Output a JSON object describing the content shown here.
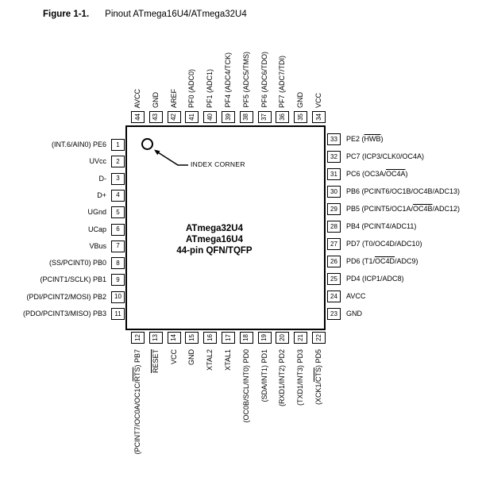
{
  "figure_caption": {
    "label": "Figure 1-1.",
    "title": "Pinout ATmega16U4/ATmega32U4"
  },
  "chip": {
    "title_lines": [
      "ATmega32U4",
      "ATmega16U4",
      "44-pin QFN/TQFP"
    ],
    "index_corner_label": "INDEX CORNER"
  },
  "colors": {
    "ink": "#000000",
    "paper": "#ffffff"
  },
  "pins": {
    "top": [
      {
        "num": 44,
        "label": "AVCC"
      },
      {
        "num": 43,
        "label": "GND"
      },
      {
        "num": 42,
        "label": "AREF"
      },
      {
        "num": 41,
        "label": "PF0 (ADC0)"
      },
      {
        "num": 40,
        "label": "PF1 (ADC1)"
      },
      {
        "num": 39,
        "label": "PF4 (ADC4/TCK)"
      },
      {
        "num": 38,
        "label": "PF5 (ADC5/TMS)"
      },
      {
        "num": 37,
        "label": "PF6 (ADC6/TDO)"
      },
      {
        "num": 36,
        "label": "PF7 (ADC7/TDI)"
      },
      {
        "num": 35,
        "label": "GND"
      },
      {
        "num": 34,
        "label": "VCC"
      }
    ],
    "left": [
      {
        "num": 1,
        "label": "(INT.6/AIN0) PE6"
      },
      {
        "num": 2,
        "label": "UVcc"
      },
      {
        "num": 3,
        "label": "D-"
      },
      {
        "num": 4,
        "label": "D+"
      },
      {
        "num": 5,
        "label": "UGnd"
      },
      {
        "num": 6,
        "label": "UCap"
      },
      {
        "num": 7,
        "label": "VBus"
      },
      {
        "num": 8,
        "label": "(SS/PCINT0) PB0"
      },
      {
        "num": 9,
        "label": "(PCINT1/SCLK) PB1"
      },
      {
        "num": 10,
        "label": "(PDI/PCINT2/MOSI) PB2"
      },
      {
        "num": 11,
        "label": "(PDO/PCINT3/MISO) PB3"
      }
    ],
    "right": [
      {
        "num": 33,
        "label": "PE2 ([[HWB]])"
      },
      {
        "num": 32,
        "label": "PC7 (ICP3/CLK0/OC4A)"
      },
      {
        "num": 31,
        "label": "PC6 (OC3A/[[OC4A]])"
      },
      {
        "num": 30,
        "label": "PB6 (PCINT6/OC1B/OC4B/ADC13)"
      },
      {
        "num": 29,
        "label": "PB5 (PCINT5/OC1A/[[OC4B]]/ADC12)"
      },
      {
        "num": 28,
        "label": "PB4 (PCINT4/ADC11)"
      },
      {
        "num": 27,
        "label": "PD7 (T0/OC4D/ADC10)"
      },
      {
        "num": 26,
        "label": "PD6 (T1/[[OC4D]]/ADC9)"
      },
      {
        "num": 25,
        "label": "PD4 (ICP1/ADC8)"
      },
      {
        "num": 24,
        "label": "AVCC"
      },
      {
        "num": 23,
        "label": "GND"
      }
    ],
    "bottom": [
      {
        "num": 12,
        "label": "(PCINT7/OC0A/OC1C/[[RTS]]) PB7"
      },
      {
        "num": 13,
        "label": "[[RESET]]"
      },
      {
        "num": 14,
        "label": "VCC"
      },
      {
        "num": 15,
        "label": "GND"
      },
      {
        "num": 16,
        "label": "XTAL2"
      },
      {
        "num": 17,
        "label": "XTAL1"
      },
      {
        "num": 18,
        "label": "(OC0B/SCL/INT0) PD0"
      },
      {
        "num": 19,
        "label": "(SDA/INT1) PD1"
      },
      {
        "num": 20,
        "label": "(RXD1/INT2) PD2"
      },
      {
        "num": 21,
        "label": "(TXD1/INT3) PD3"
      },
      {
        "num": 22,
        "label": "(XCK1/[[CTS]]) PD5"
      }
    ]
  }
}
